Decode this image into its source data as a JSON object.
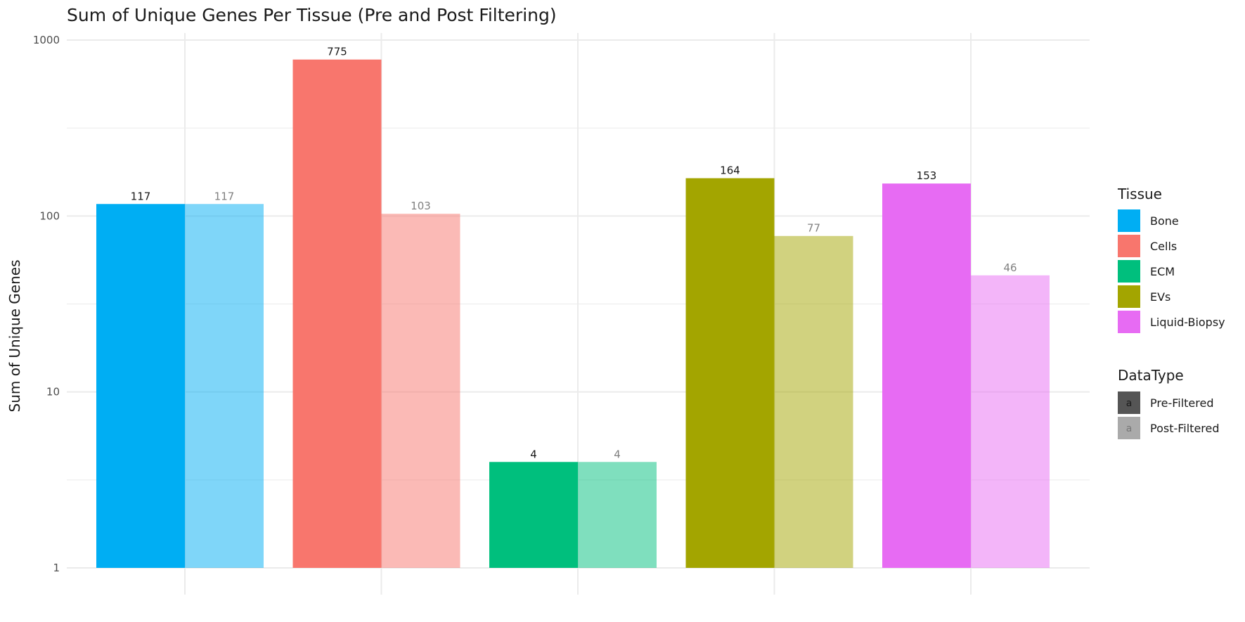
{
  "chart_data": {
    "type": "bar",
    "title": "Sum of Unique Genes Per Tissue (Pre and Post Filtering)",
    "xlabel": "",
    "ylabel": "Sum of Unique Genes",
    "y_scale": "log10",
    "ylim": [
      1,
      1000
    ],
    "y_ticks": [
      {
        "value": 1,
        "label": "1"
      },
      {
        "value": 10,
        "label": "10"
      },
      {
        "value": 100,
        "label": "100"
      },
      {
        "value": 1000,
        "label": "1000"
      }
    ],
    "grid": true,
    "legend_placement": "right",
    "categories": [
      "Bone",
      "Cells",
      "ECM",
      "EVs",
      "Liquid-Biopsy"
    ],
    "series": [
      {
        "name": "Pre-Filtered",
        "values": [
          117,
          775,
          4,
          164,
          153
        ],
        "labels": [
          "117",
          "775",
          "4",
          "164",
          "153"
        ]
      },
      {
        "name": "Post-Filtered",
        "values": [
          117,
          103,
          4,
          77,
          46
        ],
        "labels": [
          "117",
          "103",
          "4",
          "77",
          "46"
        ]
      }
    ],
    "legends": [
      {
        "title": "Tissue",
        "items": [
          {
            "label": "Bone",
            "color": "#00AEF3"
          },
          {
            "label": "Cells",
            "color": "#F8766D"
          },
          {
            "label": "ECM",
            "color": "#00BF7D"
          },
          {
            "label": "EVs",
            "color": "#A3A500"
          },
          {
            "label": "Liquid-Biopsy",
            "color": "#E76BF3"
          }
        ]
      },
      {
        "title": "DataType",
        "items": [
          {
            "label": "Pre-Filtered",
            "key_text": "a",
            "color": "#555555"
          },
          {
            "label": "Post-Filtered",
            "key_text": "a",
            "color": "#aaaaaa"
          }
        ]
      }
    ],
    "colors": {
      "Bone": "#00AEF3",
      "Cells": "#F8766D",
      "ECM": "#00BF7D",
      "EVs": "#A3A500",
      "Liquid-Biopsy": "#E76BF3",
      "grid": "#ebebeb",
      "pre_label": "#1a1a1a",
      "post_label": "#808080"
    },
    "post_filtered_opacity": 0.5
  }
}
